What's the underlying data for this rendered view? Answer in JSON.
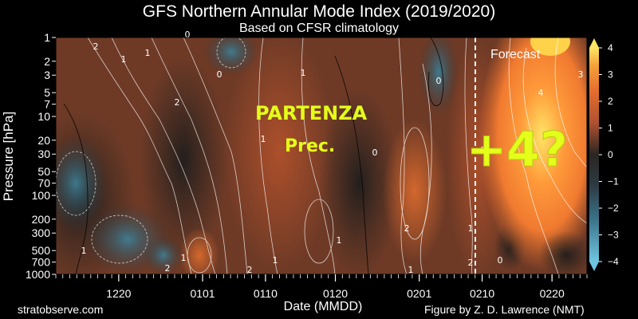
{
  "chart_data": {
    "type": "heatmap",
    "title": "GFS Northern Annular Mode Index (2019/2020)",
    "subtitle": "Based on CFSR climatology",
    "xlabel": "Date (MMDD)",
    "ylabel": "Pressure [hPa]",
    "x_ticks": [
      "1220",
      "0101",
      "0110",
      "0120",
      "0201",
      "0210",
      "0220"
    ],
    "y_ticks": [
      1,
      2,
      3,
      5,
      7,
      10,
      20,
      30,
      50,
      70,
      100,
      200,
      300,
      500,
      700,
      1000
    ],
    "ylim": [
      1000,
      1
    ],
    "y_scale": "log",
    "colorbar_ticks": [
      4,
      3,
      2,
      1,
      0,
      -1,
      -2,
      -3,
      -4
    ],
    "clim": [
      -4,
      4
    ],
    "forecast_label": "Forecast",
    "annotations": [
      "PARTENZA",
      "Prec.",
      "+4?"
    ],
    "contour_labels": [
      "2",
      "1",
      "1",
      "0",
      "0",
      "2",
      "1",
      "1",
      "0",
      "1",
      "2",
      "1",
      "0",
      "1",
      "2",
      "2",
      "1",
      "4",
      "3",
      "2",
      "0",
      "1",
      "2",
      "1"
    ]
  },
  "footer": {
    "site": "stratobserve.com",
    "credit": "Figure by Z. D. Lawrence (NMT)"
  }
}
